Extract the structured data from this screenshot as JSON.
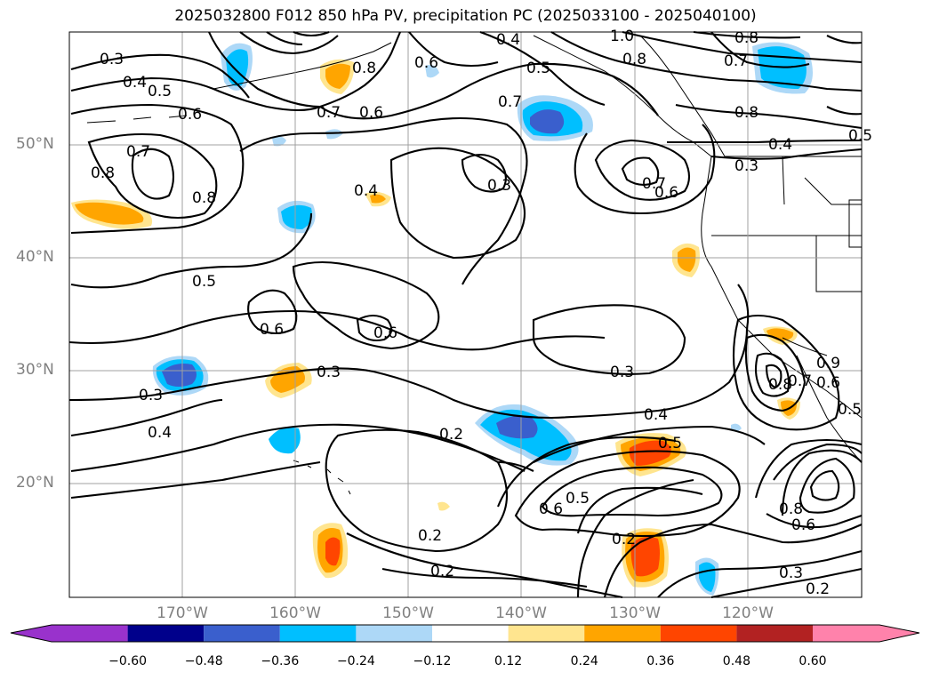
{
  "title": "2025032800 F012 850 hPa PV, precipitation PC (2025033100 - 2025040100)",
  "lat_ticks": [
    "50°N",
    "40°N",
    "30°N",
    "20°N"
  ],
  "lon_ticks": [
    "170°W",
    "160°W",
    "150°W",
    "140°W",
    "130°W",
    "120°W"
  ],
  "colorbar": {
    "ticks": [
      "−0.60",
      "−0.48",
      "−0.36",
      "−0.24",
      "−0.12",
      "0.12",
      "0.24",
      "0.36",
      "0.48",
      "0.60"
    ],
    "colors": [
      "#9932cc",
      "#00008b",
      "#3a5fcd",
      "#00bfff",
      "#add8f7",
      "#ffffff",
      "#ffe58f",
      "#ffa500",
      "#ff4500",
      "#b22222",
      "#ff82ab"
    ]
  },
  "contour_labels": [
    "0.3",
    "0.4",
    "0.5",
    "0.6",
    "0.7",
    "0.8",
    "0.6",
    "0.4",
    "1.0",
    "0.8",
    "0.5",
    "0.7",
    "0.6",
    "0.8",
    "0.7",
    "0.8",
    "0.7",
    "0.8",
    "0.4",
    "0.3",
    "0.6",
    "0.7",
    "0.8",
    "0.4",
    "0.3",
    "0.5",
    "0.6",
    "0.6",
    "0.3",
    "0.3",
    "0.4",
    "0.3",
    "0.2",
    "0.4",
    "0.5",
    "0.6",
    "0.5",
    "0.2",
    "0.2",
    "0.2",
    "0.3",
    "0.2",
    "0.8",
    "0.7",
    "0.6",
    "0.8",
    "0.9",
    "0.6",
    "0.5",
    "0.5"
  ]
}
